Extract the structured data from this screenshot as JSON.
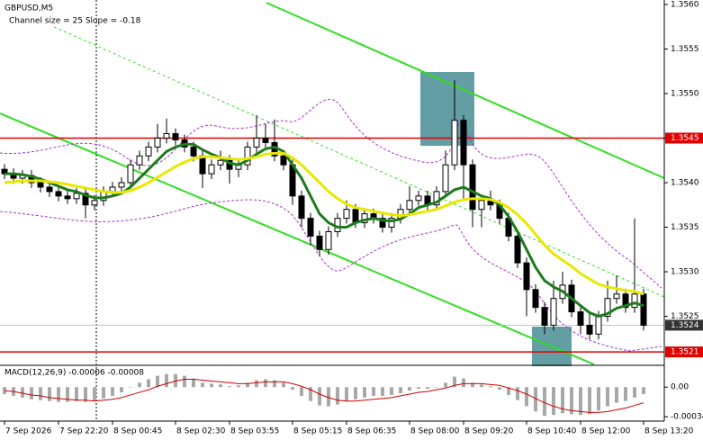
{
  "chart_data": {
    "type": "candlestick",
    "title": "GBPUSD,M5",
    "subtitle": "Channel size = 25 Slope = -0.18",
    "categories": [
      "7 Sep 2026",
      null,
      null,
      null,
      null,
      null,
      "7 Sep 22:20",
      null,
      null,
      null,
      null,
      null,
      "8 Sep 00:45",
      null,
      null,
      null,
      null,
      null,
      null,
      "8 Sep 02:30",
      null,
      null,
      null,
      null,
      null,
      "8 Sep 03:55",
      null,
      null,
      null,
      null,
      null,
      null,
      "8 Sep 05:15",
      null,
      null,
      null,
      null,
      null,
      "8 Sep 06:35",
      null,
      null,
      null,
      null,
      null,
      null,
      "8 Sep 08:00",
      null,
      null,
      null,
      null,
      null,
      "8 Sep 09:20",
      null,
      null,
      null,
      null,
      null,
      null,
      "8 Sep 10:40",
      null,
      null,
      null,
      null,
      null,
      "8 Sep 12:00",
      null,
      null,
      null,
      null,
      null,
      null,
      "8 Sep 13:20"
    ],
    "open": [
      1.35415,
      1.3541,
      1.35405,
      1.35408,
      1.354,
      1.35395,
      1.3539,
      1.35385,
      1.35382,
      1.35388,
      1.35375,
      1.3538,
      1.3539,
      1.35395,
      1.354,
      1.3542,
      1.3543,
      1.3544,
      1.3545,
      1.35455,
      1.35448,
      1.3544,
      1.3543,
      1.3541,
      1.3542,
      1.35425,
      1.35415,
      1.3542,
      1.3544,
      1.3545,
      1.35445,
      1.3543,
      1.3542,
      1.35385,
      1.3536,
      1.3534,
      1.35325,
      1.35345,
      1.3536,
      1.3537,
      1.35355,
      1.35365,
      1.3536,
      1.3535,
      1.3536,
      1.3537,
      1.3538,
      1.35385,
      1.35375,
      1.3539,
      1.3542,
      1.3547,
      1.3542,
      1.3537,
      1.3538,
      1.35375,
      1.3536,
      1.3534,
      1.3531,
      1.3528,
      1.3526,
      1.3524,
      1.3527,
      1.35285,
      1.35255,
      1.3524,
      1.3523,
      1.3525,
      1.3527,
      1.35275,
      1.3526,
      1.35275
    ],
    "high": [
      1.35421,
      1.35416,
      1.35414,
      1.35414,
      1.35406,
      1.35401,
      1.35396,
      1.35391,
      1.35394,
      1.35394,
      1.35386,
      1.35396,
      1.35401,
      1.35406,
      1.35426,
      1.35436,
      1.35446,
      1.35466,
      1.35472,
      1.35461,
      1.35454,
      1.35446,
      1.35436,
      1.35426,
      1.35436,
      1.35431,
      1.35426,
      1.35446,
      1.35476,
      1.35466,
      1.35471,
      1.35436,
      1.35426,
      1.35391,
      1.35366,
      1.35346,
      1.35351,
      1.35366,
      1.3538,
      1.35376,
      1.35371,
      1.35371,
      1.35366,
      1.35366,
      1.35376,
      1.35396,
      1.35391,
      1.35391,
      1.35396,
      1.35436,
      1.35515,
      1.35476,
      1.35426,
      1.35386,
      1.35391,
      1.35381,
      1.35366,
      1.35346,
      1.35316,
      1.35286,
      1.35266,
      1.3529,
      1.353,
      1.35291,
      1.35261,
      1.35256,
      1.35256,
      1.3529,
      1.35296,
      1.35281,
      1.3536,
      1.35281
    ],
    "low": [
      1.35404,
      1.35399,
      1.35399,
      1.35394,
      1.35389,
      1.35384,
      1.35379,
      1.35376,
      1.35376,
      1.3536,
      1.35369,
      1.35374,
      1.35384,
      1.35389,
      1.35394,
      1.35414,
      1.35424,
      1.35434,
      1.35444,
      1.35442,
      1.35434,
      1.35424,
      1.35394,
      1.35404,
      1.35414,
      1.35399,
      1.35406,
      1.35414,
      1.35434,
      1.35439,
      1.35424,
      1.35414,
      1.35375,
      1.3535,
      1.3533,
      1.35318,
      1.35319,
      1.35339,
      1.35354,
      1.35349,
      1.35349,
      1.35354,
      1.35344,
      1.35344,
      1.35354,
      1.35364,
      1.35374,
      1.35369,
      1.35369,
      1.35384,
      1.35414,
      1.3538,
      1.3535,
      1.3535,
      1.35369,
      1.35354,
      1.35334,
      1.35304,
      1.3525,
      1.35254,
      1.3523,
      1.35234,
      1.35264,
      1.35249,
      1.3523,
      1.35224,
      1.35224,
      1.35244,
      1.35264,
      1.35254,
      1.35254,
      1.35234
    ],
    "close": [
      1.3541,
      1.35405,
      1.35408,
      1.354,
      1.35395,
      1.3539,
      1.35385,
      1.35382,
      1.35388,
      1.35375,
      1.3538,
      1.3539,
      1.35395,
      1.354,
      1.3542,
      1.3543,
      1.3544,
      1.3545,
      1.35455,
      1.35448,
      1.3544,
      1.3543,
      1.3541,
      1.3542,
      1.35425,
      1.35415,
      1.3542,
      1.3544,
      1.3545,
      1.35445,
      1.3543,
      1.3542,
      1.35385,
      1.3536,
      1.3534,
      1.35325,
      1.35345,
      1.3536,
      1.3537,
      1.35355,
      1.35365,
      1.3536,
      1.3535,
      1.3536,
      1.3537,
      1.3538,
      1.35385,
      1.35375,
      1.3539,
      1.3542,
      1.3547,
      1.3542,
      1.3537,
      1.3538,
      1.35375,
      1.3536,
      1.3534,
      1.3531,
      1.3528,
      1.3526,
      1.3524,
      1.3527,
      1.35285,
      1.35255,
      1.3524,
      1.3523,
      1.3525,
      1.3527,
      1.35275,
      1.3526,
      1.35275,
      1.3524
    ],
    "series": [
      {
        "color": "#1e7a1e",
        "values": [
          1.3541,
          1.3541,
          1.35409,
          1.35407,
          1.35404,
          1.354,
          1.35396,
          1.35392,
          1.3539,
          1.35386,
          1.35383,
          1.35383,
          1.35385,
          1.35388,
          1.35395,
          1.35405,
          1.35415,
          1.35425,
          1.35435,
          1.3544,
          1.35443,
          1.35443,
          1.35437,
          1.35432,
          1.35428,
          1.35422,
          1.3542,
          1.35425,
          1.35432,
          1.35438,
          1.3544,
          1.35435,
          1.3542,
          1.35405,
          1.35385,
          1.35365,
          1.35355,
          1.3535,
          1.3535,
          1.35355,
          1.35358,
          1.3536,
          1.35358,
          1.35357,
          1.35359,
          1.35365,
          1.35372,
          1.35375,
          1.35378,
          1.35385,
          1.35392,
          1.35395,
          1.3539,
          1.35385,
          1.35382,
          1.35375,
          1.35362,
          1.35345,
          1.35325,
          1.35305,
          1.3529,
          1.35283,
          1.35278,
          1.3527,
          1.35262,
          1.35254,
          1.3525,
          1.35253,
          1.35259,
          1.35262,
          1.35265,
          1.35262
        ]
      },
      {
        "color": "#e8e800",
        "values": [
          1.354,
          1.35401,
          1.35402,
          1.35402,
          1.35402,
          1.35401,
          1.354,
          1.35398,
          1.35396,
          1.35394,
          1.35392,
          1.3539,
          1.35389,
          1.35389,
          1.35391,
          1.35395,
          1.354,
          1.35406,
          1.35412,
          1.35418,
          1.35423,
          1.35427,
          1.35429,
          1.35429,
          1.35428,
          1.35427,
          1.35426,
          1.35427,
          1.35429,
          1.35432,
          1.35433,
          1.35433,
          1.35428,
          1.3542,
          1.3541,
          1.354,
          1.3539,
          1.35382,
          1.35376,
          1.35372,
          1.3537,
          1.35368,
          1.35366,
          1.35364,
          1.35363,
          1.35364,
          1.35366,
          1.35368,
          1.3537,
          1.35374,
          1.35378,
          1.35381,
          1.35382,
          1.35382,
          1.35381,
          1.35378,
          1.35372,
          1.35364,
          1.35354,
          1.35342,
          1.3533,
          1.3532,
          1.35313,
          1.35306,
          1.35298,
          1.35292,
          1.35286,
          1.35283,
          1.35281,
          1.35279,
          1.35278,
          1.35275
        ]
      }
    ],
    "ylim": [
      1.35196,
      1.35605
    ],
    "yticks": [
      {
        "value": 1.3525,
        "label": "1.3525"
      },
      {
        "value": 1.353,
        "label": "1.3530"
      },
      {
        "value": 1.3535,
        "label": "1.3535"
      },
      {
        "value": 1.354,
        "label": "1.3540"
      },
      {
        "value": 1.3545,
        "label": "1.3545"
      },
      {
        "value": 1.355,
        "label": "1.3550"
      },
      {
        "value": 1.3555,
        "label": "1.3555"
      },
      {
        "value": 1.356,
        "label": "1.3560"
      }
    ],
    "levels": [
      {
        "value": 1.3545,
        "color": "#e00000"
      },
      {
        "value": 1.3521,
        "color": "#e00000"
      }
    ],
    "current_price": 1.3524,
    "macd": {
      "title": "MACD(12,26,9) -0.00006 -0.00008",
      "ylim": [
        -0.00039,
        0.00024
      ],
      "yticks": [
        {
          "value": 0,
          "label": "0.00"
        },
        {
          "value": -0.00034,
          "label": "-0.00034"
        }
      ],
      "histogram": {
        "color": "#a8a8a8",
        "values": [
          -8e-05,
          -0.0001,
          -0.00012,
          -0.00014,
          -0.00015,
          -0.00016,
          -0.00017,
          -0.00017,
          -0.00016,
          -0.00017,
          -0.00016,
          -0.00013,
          -0.0001,
          -6e-05,
          0,
          5e-05,
          9e-05,
          0.00013,
          0.00015,
          0.00015,
          0.00013,
          0.0001,
          5e-05,
          4e-05,
          3e-05,
          1e-05,
          2e-05,
          5e-05,
          8e-05,
          9e-05,
          8e-05,
          5e-05,
          -3e-05,
          -0.0001,
          -0.00016,
          -0.00021,
          -0.00022,
          -0.0002,
          -0.00016,
          -0.00014,
          -0.00012,
          -0.0001,
          -0.0001,
          -9e-05,
          -7e-05,
          -4e-05,
          -2e-05,
          -2e-05,
          0,
          5e-05,
          0.00012,
          0.0001,
          5e-05,
          3e-05,
          1e-05,
          -3e-05,
          -9e-05,
          -0.00015,
          -0.00022,
          -0.00028,
          -0.00033,
          -0.00032,
          -0.0003,
          -0.00031,
          -0.00032,
          -0.00031,
          -0.00027,
          -0.00022,
          -0.00018,
          -0.00016,
          -0.00012,
          -8e-05
        ]
      },
      "signal": {
        "color": "#d00000",
        "values": [
          -4e-05,
          -5e-05,
          -7e-05,
          -9e-05,
          -0.0001,
          -0.00012,
          -0.00013,
          -0.00014,
          -0.00015,
          -0.00015,
          -0.00016,
          -0.00015,
          -0.00014,
          -0.00012,
          -9e-05,
          -6e-05,
          -3e-05,
          1e-05,
          4e-05,
          7e-05,
          9e-05,
          9e-05,
          8e-05,
          7e-05,
          6e-05,
          5e-05,
          4e-05,
          4e-05,
          5e-05,
          6e-05,
          6e-05,
          6e-05,
          4e-05,
          1e-05,
          -3e-05,
          -8e-05,
          -0.00012,
          -0.00015,
          -0.00016,
          -0.00016,
          -0.00015,
          -0.00014,
          -0.00013,
          -0.00012,
          -0.0001,
          -8e-05,
          -6e-05,
          -5e-05,
          -3e-05,
          -1e-05,
          2e-05,
          4e-05,
          4e-05,
          4e-05,
          3e-05,
          2e-05,
          -1e-05,
          -4e-05,
          -8e-05,
          -0.00013,
          -0.00018,
          -0.00022,
          -0.00025,
          -0.00027,
          -0.00028,
          -0.00029,
          -0.00029,
          -0.00028,
          -0.00026,
          -0.00024,
          -0.00021,
          -0.00018
        ]
      }
    }
  }
}
